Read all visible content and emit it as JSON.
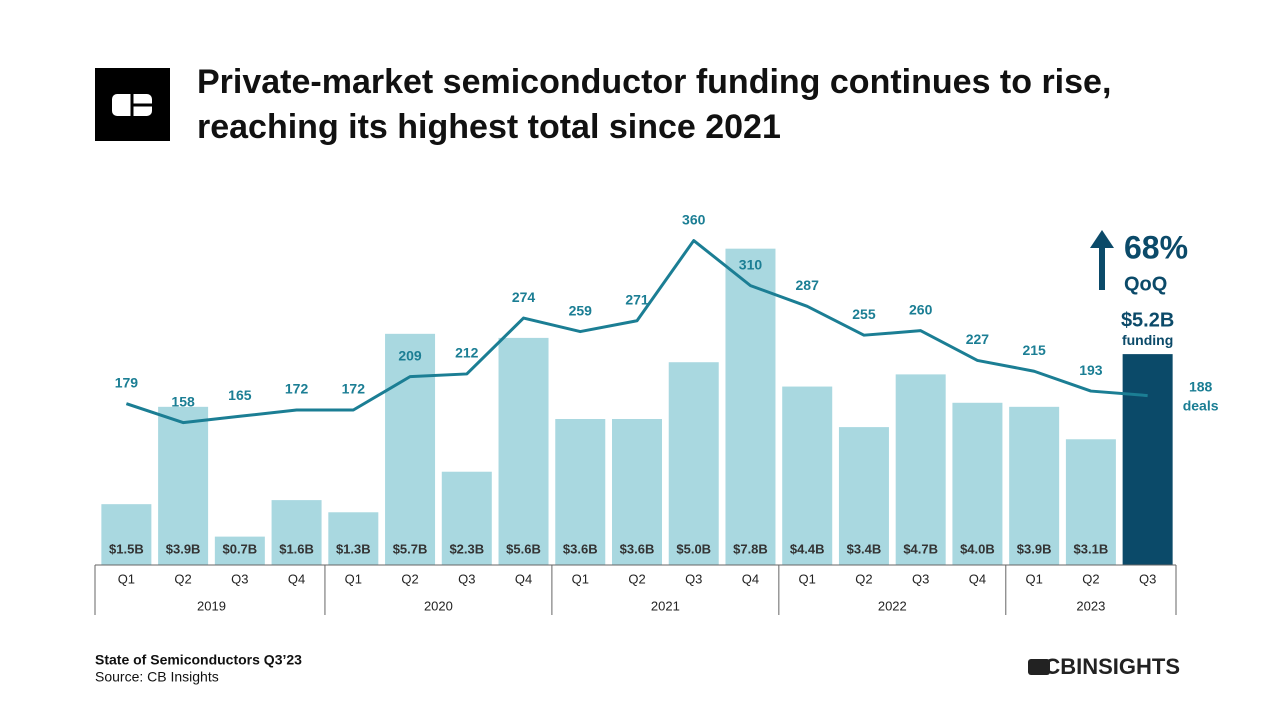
{
  "title_lines": [
    "Private-market semiconductor funding continues to rise,",
    "reaching its highest total since 2021"
  ],
  "chart_data": {
    "type": "bar",
    "categories": [
      "Q1",
      "Q2",
      "Q3",
      "Q4",
      "Q1",
      "Q2",
      "Q3",
      "Q4",
      "Q1",
      "Q2",
      "Q3",
      "Q4",
      "Q1",
      "Q2",
      "Q3",
      "Q4",
      "Q1",
      "Q2",
      "Q3"
    ],
    "years": [
      "2019",
      "2020",
      "2021",
      "2022",
      "2023"
    ],
    "series": [
      {
        "name": "funding",
        "type": "bar",
        "color": "#a9d8e0",
        "highlight_color": "#0b4a69",
        "values": [
          1.5,
          3.9,
          0.7,
          1.6,
          1.3,
          5.7,
          2.3,
          5.6,
          3.6,
          3.6,
          5.0,
          7.8,
          4.4,
          3.4,
          4.7,
          4.0,
          3.9,
          3.1,
          5.2
        ],
        "value_labels": [
          "$1.5B",
          "$3.9B",
          "$0.7B",
          "$1.6B",
          "$1.3B",
          "$5.7B",
          "$2.3B",
          "$5.6B",
          "$3.6B",
          "$3.6B",
          "$5.0B",
          "$7.8B",
          "$4.4B",
          "$3.4B",
          "$4.7B",
          "$4.0B",
          "$3.9B",
          "$3.1B",
          "$5.2B"
        ]
      },
      {
        "name": "deals",
        "type": "line",
        "axis": "y2",
        "color": "#1b7e94",
        "values": [
          179,
          158,
          165,
          172,
          172,
          209,
          212,
          274,
          259,
          271,
          360,
          310,
          287,
          255,
          260,
          227,
          215,
          193,
          188
        ]
      }
    ],
    "ylim": [
      0,
      9
    ],
    "y2lim": [
      0,
      405
    ],
    "annotation": [
      "68%",
      "QoQ"
    ]
  },
  "footer": {
    "report": "State of Semiconductors Q3’23",
    "source": "Source: CB Insights",
    "brand": "CBINSIGHTS"
  }
}
